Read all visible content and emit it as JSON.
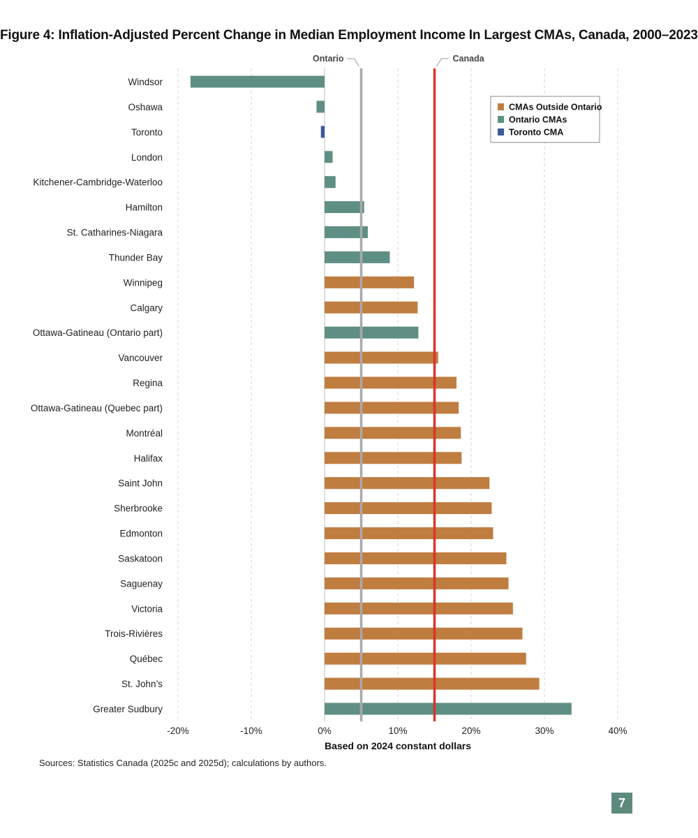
{
  "title": "Figure 4: Inflation-Adjusted Percent Change in Median Employment Income In Largest CMAs, Canada, 2000–2023",
  "source": "Sources: Statistics Canada (2025c and 2025d); calculations by authors.",
  "page_number": "7",
  "chart_data": {
    "type": "bar",
    "orientation": "horizontal",
    "title": "Figure 4: Inflation-Adjusted Percent Change in Median Employment Income In Largest CMAs, Canada, 2000–2023",
    "xlabel": "Based on 2024 constant dollars",
    "ylabel": "",
    "xlim": [
      -20,
      40
    ],
    "xticks": [
      -20,
      -10,
      0,
      10,
      20,
      30,
      40
    ],
    "xtick_labels": [
      "-20%",
      "-10%",
      "0%",
      "10%",
      "20%",
      "30%",
      "40%"
    ],
    "grid": "vertical dashed",
    "legend_position": "top-right",
    "colors": {
      "outside": "#c07d40",
      "ontario": "#5f8f84",
      "toronto": "#3b5a9d",
      "ontario_line": "#a9a9a9",
      "canada_line": "#d9342b"
    },
    "legend": [
      {
        "key": "outside",
        "label": "CMAs Outside Ontario"
      },
      {
        "key": "ontario",
        "label": "Ontario CMAs"
      },
      {
        "key": "toronto",
        "label": "Toronto CMA"
      }
    ],
    "reference_lines": [
      {
        "label": "Ontario",
        "value": 5.0,
        "color_key": "ontario_line"
      },
      {
        "label": "Canada",
        "value": 15.0,
        "color_key": "canada_line"
      }
    ],
    "categories": [
      {
        "name": "Windsor",
        "value": -18.3,
        "group": "ontario"
      },
      {
        "name": "Oshawa",
        "value": -1.1,
        "group": "ontario"
      },
      {
        "name": "Toronto",
        "value": -0.5,
        "group": "toronto"
      },
      {
        "name": "London",
        "value": 1.1,
        "group": "ontario"
      },
      {
        "name": "Kitchener-Cambridge-Waterloo",
        "value": 1.5,
        "group": "ontario"
      },
      {
        "name": "Hamilton",
        "value": 5.4,
        "group": "ontario"
      },
      {
        "name": "St. Catharines-Niagara",
        "value": 5.9,
        "group": "ontario"
      },
      {
        "name": "Thunder Bay",
        "value": 8.9,
        "group": "ontario"
      },
      {
        "name": "Winnipeg",
        "value": 12.2,
        "group": "outside"
      },
      {
        "name": "Calgary",
        "value": 12.7,
        "group": "outside"
      },
      {
        "name": "Ottawa-Gatineau (Ontario part)",
        "value": 12.8,
        "group": "ontario"
      },
      {
        "name": "Vancouver",
        "value": 15.5,
        "group": "outside"
      },
      {
        "name": "Regina",
        "value": 18.0,
        "group": "outside"
      },
      {
        "name": "Ottawa-Gatineau (Quebec part)",
        "value": 18.3,
        "group": "outside"
      },
      {
        "name": "Montréal",
        "value": 18.6,
        "group": "outside"
      },
      {
        "name": "Halifax",
        "value": 18.7,
        "group": "outside"
      },
      {
        "name": "Saint John",
        "value": 22.5,
        "group": "outside"
      },
      {
        "name": "Sherbrooke",
        "value": 22.8,
        "group": "outside"
      },
      {
        "name": "Edmonton",
        "value": 23.0,
        "group": "outside"
      },
      {
        "name": "Saskatoon",
        "value": 24.8,
        "group": "outside"
      },
      {
        "name": "Saguenay",
        "value": 25.1,
        "group": "outside"
      },
      {
        "name": "Victoria",
        "value": 25.7,
        "group": "outside"
      },
      {
        "name": "Trois-Rivières",
        "value": 27.0,
        "group": "outside"
      },
      {
        "name": "Québec",
        "value": 27.5,
        "group": "outside"
      },
      {
        "name": "St. John’s",
        "value": 29.3,
        "group": "outside"
      },
      {
        "name": "Greater Sudbury",
        "value": 33.7,
        "group": "ontario"
      }
    ]
  }
}
